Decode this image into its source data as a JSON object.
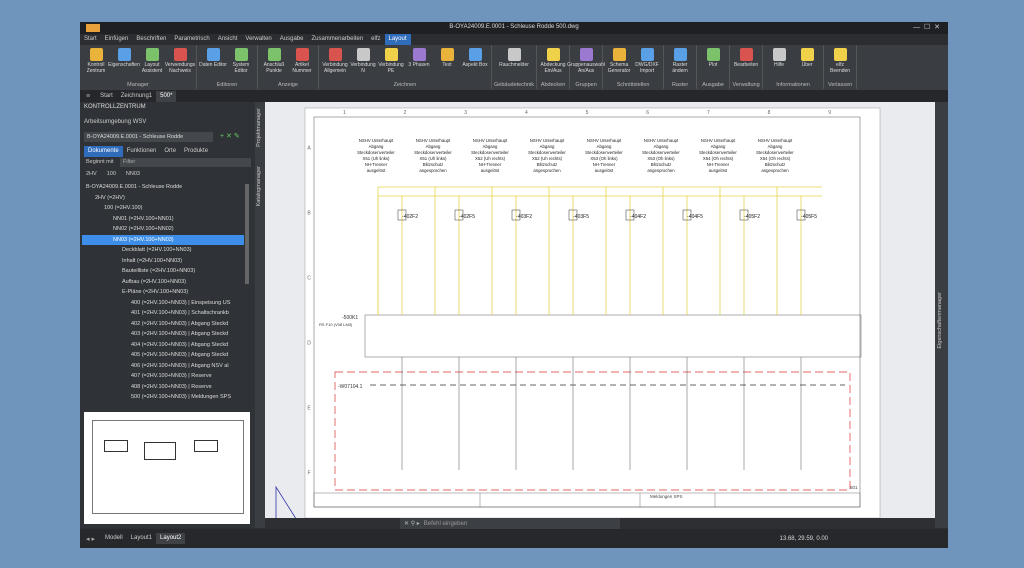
{
  "window": {
    "title": "B-OYA24009.E.0001 - Schleuse Rodde    500.dwg"
  },
  "menu_tabs": [
    {
      "label": "Start"
    },
    {
      "label": "Einfügen"
    },
    {
      "label": "Beschriften"
    },
    {
      "label": "Parametrisch"
    },
    {
      "label": "Ansicht"
    },
    {
      "label": "Verwalten"
    },
    {
      "label": "Ausgabe"
    },
    {
      "label": "Zusammenarbeiten"
    },
    {
      "label": "elfz"
    },
    {
      "label": "Layout",
      "active": true
    }
  ],
  "ribbon_groups": [
    {
      "label": "Manager",
      "buttons": [
        "Kontroll Zentrum",
        "Eigenschaften",
        "Layout Assistent",
        "Verwendungs Nachweis"
      ]
    },
    {
      "label": "Editoren",
      "buttons": [
        "Daten Editor",
        "System Editor"
      ]
    },
    {
      "label": "Anzeige",
      "buttons": [
        "Anschluß Punkte",
        "Artikel Nummer"
      ]
    },
    {
      "label": "Zeichnen",
      "buttons": [
        "Verbindung Allgemein",
        "Verbindung N",
        "Verbindung PE",
        "3 Phasen",
        "Text",
        "Aspekt Box"
      ]
    },
    {
      "label": "Gebäudetechnik",
      "buttons": [
        "Rauchmelder"
      ]
    },
    {
      "label": "Abdecken",
      "buttons": [
        "Abdeckung Ein/Aus"
      ]
    },
    {
      "label": "Gruppen",
      "buttons": [
        "Gruppenauswahl An/Aus"
      ]
    },
    {
      "label": "Schnittstellen",
      "buttons": [
        "Schema Generator",
        "DWG/DXF Import"
      ]
    },
    {
      "label": "Raster",
      "buttons": [
        "Raster ändern"
      ]
    },
    {
      "label": "Ausgabe",
      "buttons": [
        "Plot"
      ]
    },
    {
      "label": "Verwaltung",
      "buttons": [
        "Bearbeiten"
      ]
    },
    {
      "label": "Informationen",
      "buttons": [
        "Hilfe",
        "Über"
      ]
    },
    {
      "label": "Verlassen",
      "buttons": [
        "elfz Beenden"
      ]
    }
  ],
  "doc_tabs": [
    {
      "label": "Start"
    },
    {
      "label": "Zeichnung1"
    },
    {
      "label": "500*",
      "active": true
    }
  ],
  "panel": {
    "title": "KONTROLLZENTRUM",
    "workspace": "Arbeitsumgebung  WSV",
    "project": "B-OYA24009.E.0001 - Schleuse Rodde",
    "tabs": [
      {
        "label": "Dokumente",
        "active": true
      },
      {
        "label": "Funktionen"
      },
      {
        "label": "Orte"
      },
      {
        "label": "Produkte"
      }
    ],
    "filter_mode": "Beginnt mit",
    "filter_placeholder": "Filter",
    "breadcrumb": [
      "2HV",
      "100",
      "NN03"
    ],
    "tree": [
      {
        "label": "B-OYA24009.E.0001 - Schleuse Rodde",
        "level": 0
      },
      {
        "label": "2HV (=2HV)",
        "level": 1
      },
      {
        "label": "100 (=2HV.100)",
        "level": 2
      },
      {
        "label": "NN01 (=2HV.100+NN01)",
        "level": 3
      },
      {
        "label": "NN02 (=2HV.100+NN02)",
        "level": 3
      },
      {
        "label": "NN03 (=2HV.100+NN03)",
        "level": 3,
        "selected": true
      },
      {
        "label": "Deckblatt (=2HV.100+NN03)",
        "level": 4
      },
      {
        "label": "Inhalt (=2HV.100+NN03)",
        "level": 4
      },
      {
        "label": "Bauteilliste (=2HV.100+NN03)",
        "level": 4
      },
      {
        "label": "Aufbau (=2HV.100+NN03)",
        "level": 4
      },
      {
        "label": "E-Pläne (=2HV.100+NN03)",
        "level": 4
      },
      {
        "label": "400 (=2HV.100+NN03) | Einspeisung US",
        "level": 5
      },
      {
        "label": "401 (=2HV.100+NN03) | Schaltschrankb",
        "level": 5
      },
      {
        "label": "402 (=2HV.100+NN03) | Abgang Steckd",
        "level": 5
      },
      {
        "label": "403 (=2HV.100+NN03) | Abgang Steckd",
        "level": 5
      },
      {
        "label": "404 (=2HV.100+NN03) | Abgang Steckd",
        "level": 5
      },
      {
        "label": "405 (=2HV.100+NN03) | Abgang Steckd",
        "level": 5
      },
      {
        "label": "406 (=2HV.100+NN03) | Abgang NSV al",
        "level": 5
      },
      {
        "label": "407 (=2HV.100+NN03) | Reserve",
        "level": 5
      },
      {
        "label": "408 (=2HV.100+NN03) | Reserve",
        "level": 5
      },
      {
        "label": "500 (=2HV.100+NN03) | Meldungen SPS",
        "level": 5
      }
    ]
  },
  "side_labels": {
    "left": [
      "Projektmanager",
      "Katalogmanager"
    ],
    "right": "Eigenschaftenmanager"
  },
  "drawing": {
    "columns": [
      "1",
      "2",
      "3",
      "4",
      "5",
      "6",
      "7",
      "8",
      "9"
    ],
    "rows": [
      "A",
      "B",
      "C",
      "D",
      "E",
      "F"
    ],
    "headings": [
      [
        "NSHV Unterhaupt",
        "Abgang",
        "Steckdosenverteiler",
        "X51 (Uh links)",
        "NH-Trenner",
        "ausgelöst"
      ],
      [
        "NSHV Unterhaupt",
        "Abgang",
        "Steckdosenverteiler",
        "X51 (Uh links)",
        "Blitzschutz",
        "angesprochen"
      ],
      [
        "NSHV Unterhaupt",
        "Abgang",
        "Steckdosenverteiler",
        "X52 (Uh rechts)",
        "NH-Trenner",
        "ausgelöst"
      ],
      [
        "NSHV Unterhaupt",
        "Abgang",
        "Steckdosenverteiler",
        "X52 (Uh rechts)",
        "Blitzschutz",
        "angesprochen"
      ],
      [
        "NSHV Unterhaupt",
        "Abgang",
        "Steckdosenverteiler",
        "X53 (Oh links)",
        "NH-Trenner",
        "ausgelöst"
      ],
      [
        "NSHV Unterhaupt",
        "Abgang",
        "Steckdosenverteiler",
        "X53 (Oh links)",
        "Blitzschutz",
        "angesprochen"
      ],
      [
        "NSHV Unterhaupt",
        "Abgang",
        "Steckdosenverteiler",
        "X54 (Oh rechts)",
        "NH-Trenner",
        "ausgelöst"
      ],
      [
        "NSHV Unterhaupt",
        "Abgang",
        "Steckdosenverteiler",
        "X54 (Oh rechts)",
        "Blitzschutz",
        "angesprochen"
      ]
    ],
    "devices": [
      "-402F2",
      "-402F5",
      "-403F2",
      "-403F5",
      "-404F2",
      "-404F5",
      "-405F2",
      "-405F5"
    ],
    "terminal": "-500K1",
    "terminal_type": "RS F10 (V08 LM3)",
    "cable": "-W07104.1",
    "title_block": {
      "name": "Meldungen SPS",
      "sheet": "501"
    }
  },
  "command_prompt": "Befehl eingeben",
  "layout_tabs": [
    {
      "label": "Modell"
    },
    {
      "label": "Layout1"
    },
    {
      "label": "Layout2",
      "active": true
    }
  ],
  "status_coords": "13.68, 29.59, 0.00"
}
